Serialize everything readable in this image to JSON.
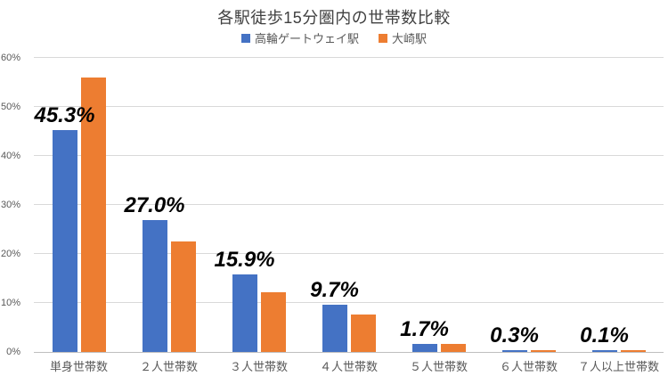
{
  "title": "各駅徒歩15分圏内の世帯数比較",
  "chart_data": {
    "type": "bar",
    "title": "各駅徒歩15分圏内の世帯数比較",
    "categories": [
      "単身世帯数",
      "２人世帯数",
      "３人世帯数",
      "４人世帯数",
      "５人世帯数",
      "６人世帯数",
      "７人以上世帯数"
    ],
    "series": [
      {
        "name": "高輪ゲートウェイ駅",
        "color": "#4472C4",
        "values": [
          45.3,
          27.0,
          15.9,
          9.7,
          1.7,
          0.3,
          0.1
        ]
      },
      {
        "name": "大崎駅",
        "color": "#ED7D31",
        "values": [
          56.0,
          22.5,
          12.2,
          7.6,
          1.6,
          0.3,
          0.1
        ]
      }
    ],
    "data_labels": {
      "for_series": "高輪ゲートウェイ駅",
      "values": [
        "45.3%",
        "27.0%",
        "15.9%",
        "9.7%",
        "1.7%",
        "0.3%",
        "0.1%"
      ]
    },
    "y_ticks": [
      "0%",
      "10%",
      "20%",
      "30%",
      "40%",
      "50%",
      "60%"
    ],
    "ylim": [
      0,
      60
    ],
    "xlabel": "",
    "ylabel": "",
    "grid": true,
    "legend_position": "top",
    "grid_color": "#D9D9D9",
    "axis_color": "#BFBFBF",
    "text_color": "#595959"
  }
}
